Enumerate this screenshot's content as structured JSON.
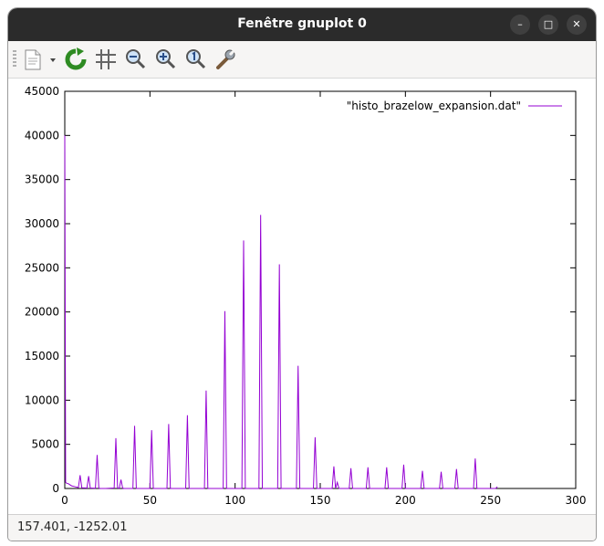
{
  "window": {
    "title": "Fenêtre gnuplot 0",
    "minimize_glyph": "–",
    "maximize_glyph": "□",
    "close_glyph": "✕"
  },
  "toolbar": {
    "items": [
      "export-icon",
      "replot-icon",
      "grid-icon",
      "zoom-out-icon",
      "zoom-in-icon",
      "zoom-reset-icon",
      "settings-wrench-icon"
    ]
  },
  "status": {
    "coords": "157.401, -1252.01"
  },
  "colors": {
    "series": "#9400d3",
    "titlebar": "#2b2b2b"
  },
  "chart_data": {
    "type": "line",
    "xlim": [
      0,
      300
    ],
    "ylim": [
      0,
      45000
    ],
    "x_ticks": [
      "0",
      "50",
      "100",
      "150",
      "200",
      "250",
      "300"
    ],
    "y_ticks": [
      "0",
      "5000",
      "10000",
      "15000",
      "20000",
      "25000",
      "30000",
      "35000",
      "40000",
      "45000"
    ],
    "legend_position": "top-right",
    "grid": false,
    "series": [
      {
        "name": "\"histo_brazelow_expansion.dat\"",
        "color": "#9400d3",
        "x": [
          0,
          0.5,
          1,
          2,
          4,
          6,
          8,
          9,
          10,
          13,
          14,
          15,
          18,
          19,
          20,
          21,
          24,
          29,
          30,
          31,
          32,
          33,
          34,
          35,
          40,
          41,
          42,
          45,
          50,
          51,
          52,
          55,
          60,
          61,
          62,
          65,
          71,
          72,
          73,
          77,
          82,
          83,
          84,
          88,
          93,
          94,
          95,
          99,
          104,
          105,
          106,
          110,
          114,
          115,
          116,
          120,
          125,
          126,
          127,
          131,
          136,
          137,
          138,
          141,
          146,
          147,
          148,
          151,
          157,
          158,
          159,
          160,
          161,
          163,
          167,
          168,
          169,
          172,
          177,
          178,
          179,
          182,
          188,
          189,
          190,
          193,
          198,
          199,
          200,
          203,
          209,
          210,
          211,
          214,
          220,
          221,
          222,
          225,
          229,
          230,
          231,
          234,
          240,
          241,
          242,
          245,
          253,
          254
        ],
        "y": [
          40000,
          700,
          600,
          550,
          300,
          200,
          100,
          1500,
          80,
          50,
          1400,
          50,
          30,
          3800,
          30,
          0,
          0,
          50,
          5700,
          50,
          30,
          1000,
          30,
          0,
          0,
          7100,
          0,
          0,
          0,
          6600,
          0,
          0,
          0,
          7300,
          0,
          0,
          0,
          8300,
          0,
          0,
          0,
          11100,
          0,
          0,
          0,
          20100,
          0,
          0,
          0,
          28100,
          0,
          0,
          0,
          31000,
          0,
          0,
          0,
          25400,
          0,
          0,
          0,
          13900,
          0,
          0,
          0,
          5800,
          0,
          0,
          0,
          2500,
          0,
          700,
          0,
          0,
          0,
          2300,
          0,
          0,
          0,
          2400,
          0,
          0,
          0,
          2400,
          0,
          0,
          0,
          2700,
          0,
          0,
          0,
          2000,
          0,
          0,
          0,
          1900,
          0,
          0,
          0,
          2200,
          0,
          0,
          0,
          3400,
          0,
          0,
          0,
          200
        ]
      }
    ]
  }
}
